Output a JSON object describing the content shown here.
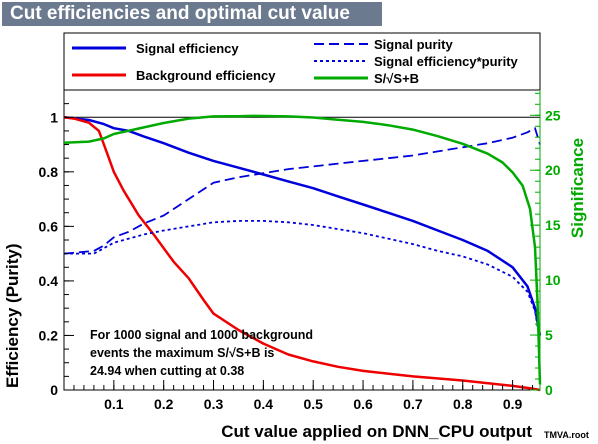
{
  "chart_data": {
    "type": "line",
    "title": "Cut efficiencies and optimal cut value",
    "xlabel": "Cut value applied on DNN_CPU output",
    "ylabel": "Efficiency (Purity)",
    "y2label": "Significance",
    "xlim": [
      0.0,
      0.955
    ],
    "ylim": [
      0,
      1.1
    ],
    "y2lim": [
      0,
      27.3
    ],
    "xticks": [
      0.1,
      0.2,
      0.3,
      0.4,
      0.5,
      0.6,
      0.7,
      0.8,
      0.9
    ],
    "xtick_labels": [
      "0.1",
      "0.2",
      "0.3",
      "0.4",
      "0.5",
      "0.6",
      "0.7",
      "0.8",
      "0.9"
    ],
    "yticks": [
      0,
      0.2,
      0.4,
      0.6,
      0.8,
      1
    ],
    "ytick_labels": [
      "0",
      "0.2",
      "0.4",
      "0.6",
      "0.8",
      "1"
    ],
    "y2ticks": [
      0,
      5,
      10,
      15,
      20,
      25
    ],
    "y2tick_labels": [
      "0",
      "5",
      "10",
      "15",
      "20",
      "25"
    ],
    "reference_line_y": 1.0,
    "legend": {
      "left": [
        {
          "label": "Signal efficiency",
          "color": "#0000dd",
          "style": "solid"
        },
        {
          "label": "Background efficiency",
          "color": "#ee0000",
          "style": "solid"
        }
      ],
      "right": [
        {
          "label": "Signal purity",
          "color": "#0000dd",
          "style": "dashed"
        },
        {
          "label": "Signal efficiency*purity",
          "color": "#0000dd",
          "style": "dotted"
        },
        {
          "label": "S/√S+B",
          "color": "#00aa00",
          "style": "solid"
        }
      ]
    },
    "annotation": {
      "line1": "For 1000 signal and 1000 background",
      "line2": "events the maximum S/√S+B is",
      "line3": "24.94 when cutting at  0.38"
    },
    "credit": "TMVA.root",
    "series": [
      {
        "name": "Signal efficiency",
        "color": "#0000dd",
        "axis": "left",
        "dash": "",
        "x": [
          0.0,
          0.05,
          0.08,
          0.1,
          0.13,
          0.16,
          0.2,
          0.25,
          0.3,
          0.35,
          0.4,
          0.45,
          0.5,
          0.55,
          0.6,
          0.65,
          0.7,
          0.75,
          0.8,
          0.85,
          0.9,
          0.93,
          0.945,
          0.955
        ],
        "y": [
          1.0,
          0.99,
          0.975,
          0.96,
          0.95,
          0.93,
          0.905,
          0.87,
          0.84,
          0.815,
          0.79,
          0.765,
          0.74,
          0.71,
          0.68,
          0.65,
          0.62,
          0.585,
          0.55,
          0.51,
          0.45,
          0.38,
          0.3,
          0.2
        ]
      },
      {
        "name": "Background efficiency",
        "color": "#ee0000",
        "axis": "left",
        "dash": "",
        "x": [
          0.0,
          0.02,
          0.05,
          0.07,
          0.08,
          0.09,
          0.1,
          0.12,
          0.15,
          0.18,
          0.2,
          0.22,
          0.25,
          0.28,
          0.3,
          0.35,
          0.4,
          0.45,
          0.5,
          0.55,
          0.6,
          0.7,
          0.8,
          0.9,
          0.94,
          0.955
        ],
        "y": [
          1.0,
          0.995,
          0.98,
          0.95,
          0.9,
          0.85,
          0.8,
          0.73,
          0.64,
          0.57,
          0.52,
          0.47,
          0.41,
          0.33,
          0.28,
          0.22,
          0.17,
          0.13,
          0.105,
          0.085,
          0.07,
          0.05,
          0.035,
          0.015,
          0.005,
          0.0
        ]
      },
      {
        "name": "Signal purity",
        "color": "#0000dd",
        "axis": "left",
        "dash": "10,5",
        "x": [
          0.0,
          0.03,
          0.06,
          0.08,
          0.1,
          0.13,
          0.16,
          0.2,
          0.25,
          0.3,
          0.35,
          0.4,
          0.45,
          0.5,
          0.55,
          0.6,
          0.65,
          0.7,
          0.75,
          0.8,
          0.85,
          0.9,
          0.93,
          0.945,
          0.955
        ],
        "y": [
          0.5,
          0.505,
          0.51,
          0.53,
          0.56,
          0.58,
          0.61,
          0.64,
          0.7,
          0.76,
          0.78,
          0.795,
          0.81,
          0.82,
          0.83,
          0.84,
          0.85,
          0.86,
          0.875,
          0.89,
          0.905,
          0.925,
          0.945,
          0.96,
          0.9
        ]
      },
      {
        "name": "Signal efficiency*purity",
        "color": "#0000dd",
        "axis": "left",
        "dash": "3,3",
        "x": [
          0.0,
          0.03,
          0.06,
          0.08,
          0.1,
          0.13,
          0.16,
          0.2,
          0.25,
          0.3,
          0.35,
          0.4,
          0.45,
          0.5,
          0.55,
          0.6,
          0.65,
          0.7,
          0.75,
          0.8,
          0.85,
          0.9,
          0.93,
          0.945,
          0.955
        ],
        "y": [
          0.5,
          0.5,
          0.5,
          0.52,
          0.54,
          0.555,
          0.57,
          0.585,
          0.6,
          0.615,
          0.62,
          0.62,
          0.615,
          0.605,
          0.59,
          0.575,
          0.555,
          0.535,
          0.51,
          0.49,
          0.46,
          0.415,
          0.36,
          0.29,
          0.18
        ]
      },
      {
        "name": "S/√S+B",
        "color": "#00aa00",
        "axis": "right",
        "dash": "",
        "x": [
          0.0,
          0.05,
          0.08,
          0.1,
          0.15,
          0.2,
          0.25,
          0.3,
          0.35,
          0.38,
          0.45,
          0.5,
          0.55,
          0.6,
          0.65,
          0.7,
          0.75,
          0.8,
          0.85,
          0.88,
          0.9,
          0.92,
          0.935,
          0.945,
          0.95,
          0.955
        ],
        "y": [
          22.5,
          22.6,
          22.9,
          23.3,
          23.8,
          24.3,
          24.7,
          24.9,
          24.92,
          24.94,
          24.9,
          24.8,
          24.6,
          24.4,
          24.1,
          23.7,
          23.1,
          22.4,
          21.5,
          20.7,
          19.8,
          18.6,
          16.5,
          13.0,
          8.0,
          0.5
        ]
      }
    ]
  }
}
